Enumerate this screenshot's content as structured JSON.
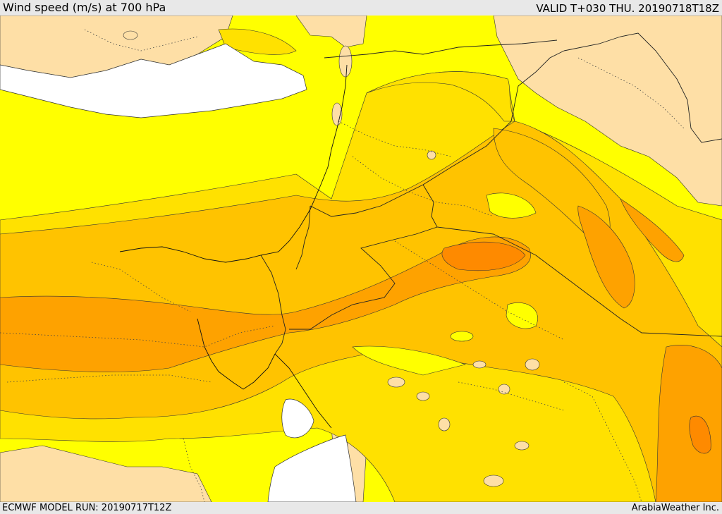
{
  "header": {
    "title": "Wind speed (m/s) at 700 hPa",
    "valid_time": "VALID T+030 THU. 20190718T18Z"
  },
  "footer": {
    "model_run": "ECMWF MODEL RUN: 20190717T12Z",
    "credit": "ArabiaWeather Inc."
  },
  "map": {
    "variable": "wind speed",
    "level": "700 hPa",
    "units": "m/s",
    "fill_colors": {
      "lowest": "#fedfa6",
      "low": "#ffff00",
      "moderate": "#ffe100",
      "high": "#ffc300",
      "higher": "#fea200",
      "highest": "#fe8a00",
      "water": "#ffffff"
    }
  }
}
